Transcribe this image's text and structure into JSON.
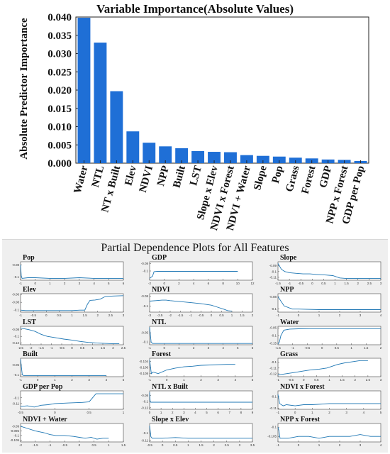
{
  "chart_data": [
    {
      "type": "bar",
      "title": "Variable Importance(Absolute Values)",
      "xlabel": "",
      "ylabel": "Absolute Predictor Importance",
      "ylim": [
        0,
        0.04
      ],
      "yticks": [
        "0.000",
        "0.005",
        "0.010",
        "0.015",
        "0.020",
        "0.025",
        "0.030",
        "0.035",
        "0.040"
      ],
      "grid": false,
      "bar_color": "#1f6fd6",
      "categories": [
        "Water",
        "NTL",
        "NT x Built",
        "Elev",
        "NDVI",
        "NPP",
        "Built",
        "LST",
        "Slope x Elev",
        "NDVI x Forest",
        "NDVI + Water",
        "Slope",
        "Pop",
        "Grass",
        "Forest",
        "GDP",
        "NPP x Forest",
        "GDP per Pop"
      ],
      "values": [
        0.0398,
        0.033,
        0.0197,
        0.0087,
        0.0056,
        0.0046,
        0.0041,
        0.0033,
        0.0031,
        0.003,
        0.0022,
        0.002,
        0.0018,
        0.0015,
        0.0013,
        0.001,
        0.0009,
        0.0006
      ]
    },
    {
      "type": "line",
      "title": "Partial Dependence Plots for All Features",
      "line_color": "#1f77b4",
      "panels": [
        {
          "name": "Pop",
          "xticks": [
            "-1",
            "0",
            "1",
            "2",
            "3",
            "4",
            "5",
            "6"
          ],
          "yticks": [
            "-0.08",
            "-0.1"
          ],
          "x": [
            -1,
            -0.95,
            -0.9,
            -0.5,
            0,
            1,
            2,
            3,
            4,
            5,
            6
          ],
          "y": [
            -0.08,
            -0.098,
            -0.102,
            -0.101,
            -0.101,
            -0.102,
            -0.102,
            -0.101,
            -0.102,
            -0.102,
            -0.102
          ],
          "ylim": [
            -0.105,
            -0.075
          ]
        },
        {
          "name": "GDP",
          "xticks": [
            "-2",
            "0",
            "2",
            "4",
            "6",
            "8",
            "10",
            "12"
          ],
          "yticks": [
            "-0.08",
            "-0.1"
          ],
          "x": [
            -2,
            -1.6,
            -1.4,
            -1,
            0,
            2,
            4,
            6,
            8,
            10
          ],
          "y": [
            -0.12,
            -0.114,
            -0.102,
            -0.101,
            -0.101,
            -0.101,
            -0.101,
            -0.101,
            -0.101,
            -0.101
          ],
          "ylim": [
            -0.125,
            -0.075
          ]
        },
        {
          "name": "Slope",
          "xticks": [
            "-1.5",
            "-1",
            "-0.5",
            "0",
            "0.5",
            "1",
            "1.5",
            "2",
            "2.5",
            "3"
          ],
          "yticks": [
            "-0.09",
            "-0.1",
            "-0.11"
          ],
          "x": [
            -1.5,
            -1.35,
            -1.2,
            -1,
            -0.7,
            -0.4,
            -0.1,
            0.2,
            0.6,
            0.9,
            1.2,
            1.5,
            2,
            2.5,
            3
          ],
          "y": [
            -0.086,
            -0.096,
            -0.1,
            -0.102,
            -0.103,
            -0.104,
            -0.104,
            -0.105,
            -0.106,
            -0.107,
            -0.111,
            -0.112,
            -0.112,
            -0.112,
            -0.112
          ],
          "ylim": [
            -0.115,
            -0.083
          ]
        },
        {
          "name": "Elev",
          "xticks": [
            "-1",
            "-0.5",
            "0",
            "0.5",
            "1",
            "1.5",
            "2",
            "2.5",
            "3"
          ],
          "yticks": [
            "-0.06",
            "-0.08",
            "-0.1"
          ],
          "x": [
            -1,
            -0.8,
            -0.5,
            0,
            0.5,
            1,
            1.3,
            1.5,
            1.6,
            1.7,
            1.9,
            2.1,
            2.3,
            2.6,
            3
          ],
          "y": [
            -0.1,
            -0.101,
            -0.101,
            -0.101,
            -0.101,
            -0.101,
            -0.1,
            -0.1,
            -0.085,
            -0.075,
            -0.074,
            -0.072,
            -0.065,
            -0.064,
            -0.063
          ],
          "ylim": [
            -0.105,
            -0.058
          ]
        },
        {
          "name": "NDVI",
          "xticks": [
            "-3",
            "-2.5",
            "-2",
            "-1.5",
            "-1",
            "-0.5",
            "0",
            "0.5",
            "1",
            "1.5",
            "2"
          ],
          "yticks": [
            "-0.08",
            "-0.1"
          ],
          "x": [
            -3,
            -2.7,
            -2.4,
            -2.2,
            -2,
            -1.5,
            -1,
            -0.5,
            0,
            0.3,
            0.6,
            0.8,
            1
          ],
          "y": [
            -0.09,
            -0.089,
            -0.088,
            -0.088,
            -0.089,
            -0.091,
            -0.093,
            -0.095,
            -0.098,
            -0.102,
            -0.106,
            -0.109,
            -0.11
          ],
          "ylim": [
            -0.112,
            -0.075
          ]
        },
        {
          "name": "NPP",
          "xticks": [
            "-1",
            "0",
            "1",
            "2",
            "3",
            "4"
          ],
          "yticks": [
            "-0.08",
            "-0.1"
          ],
          "x": [
            -1,
            -0.7,
            -0.3,
            0,
            1,
            2,
            3,
            4
          ],
          "y": [
            -0.08,
            -0.095,
            -0.1,
            -0.1,
            -0.101,
            -0.101,
            -0.101,
            -0.101
          ],
          "ylim": [
            -0.105,
            -0.075
          ]
        },
        {
          "name": "LST",
          "xticks": [
            "-2.5",
            "-2",
            "-1.5",
            "-1",
            "-0.5",
            "0",
            "0.5",
            "1",
            "1.5",
            "2",
            "2.5"
          ],
          "yticks": [
            "-0.08",
            "-0.1",
            "-0.12"
          ],
          "x": [
            -2.5,
            -2.1,
            -1.8,
            -1.5,
            -1.2,
            -0.8,
            -0.4,
            0,
            0.4,
            0.8,
            1.2,
            1.6,
            2,
            2.3
          ],
          "y": [
            -0.075,
            -0.08,
            -0.085,
            -0.094,
            -0.1,
            -0.104,
            -0.108,
            -0.111,
            -0.115,
            -0.118,
            -0.12,
            -0.121,
            -0.122,
            -0.122
          ],
          "ylim": [
            -0.125,
            -0.07
          ]
        },
        {
          "name": "NTL",
          "xticks": [
            "-1",
            "0",
            "1",
            "2",
            "3",
            "4",
            "5",
            "6"
          ],
          "yticks": [
            "-0.05",
            "-0.1"
          ],
          "x": [
            -1,
            -0.9,
            -0.8,
            0,
            1,
            2,
            3,
            4,
            5,
            6
          ],
          "y": [
            -0.02,
            -0.1,
            -0.108,
            -0.108,
            -0.108,
            -0.108,
            -0.108,
            -0.108,
            -0.108,
            -0.108
          ],
          "ylim": [
            -0.115,
            -0.015
          ]
        },
        {
          "name": "Water",
          "xticks": [
            "-1.5",
            "-1",
            "-0.5",
            "0",
            "0.5",
            "1",
            "1.5",
            "2"
          ],
          "yticks": [
            "-0.05",
            "-0.1",
            "-0.15"
          ],
          "x": [
            -1.5,
            -1.45,
            -1.4,
            -1.3,
            -1.1,
            -0.8,
            -0.4,
            0,
            0.5,
            1,
            1.5,
            2
          ],
          "y": [
            -0.155,
            -0.14,
            -0.1,
            -0.065,
            -0.058,
            -0.056,
            -0.055,
            -0.055,
            -0.055,
            -0.055,
            -0.055,
            -0.055
          ],
          "ylim": [
            -0.16,
            -0.04
          ]
        },
        {
          "name": "Built",
          "xticks": [
            "-1",
            "0",
            "1",
            "2",
            "3",
            "4",
            "5"
          ],
          "yticks": [
            "-0.05",
            "-0.1"
          ],
          "x": [
            -1,
            -0.9,
            -0.8,
            0,
            1,
            2,
            3,
            4
          ],
          "y": [
            -0.02,
            -0.1,
            -0.105,
            -0.105,
            -0.105,
            -0.105,
            -0.105,
            -0.105
          ],
          "ylim": [
            -0.11,
            -0.015
          ]
        },
        {
          "name": "Forest",
          "xticks": [
            "-1",
            "0",
            "1",
            "2",
            "3",
            "4",
            "5"
          ],
          "yticks": [
            "-0.104",
            "-0.106",
            "-0.108"
          ],
          "x": [
            -1,
            -0.9,
            -0.8,
            -0.5,
            0,
            0.5,
            1,
            1.5,
            2,
            2.5,
            3,
            3.5,
            4
          ],
          "y": [
            -0.1035,
            -0.108,
            -0.1075,
            -0.108,
            -0.1068,
            -0.1062,
            -0.1058,
            -0.1056,
            -0.1053,
            -0.1052,
            -0.1051,
            -0.105,
            -0.105
          ],
          "ylim": [
            -0.109,
            -0.103
          ]
        },
        {
          "name": "Grass",
          "xticks": [
            "-1",
            "-0.5",
            "0",
            "0.5",
            "1",
            "1.5",
            "2",
            "2.5",
            "3"
          ],
          "yticks": [
            "-0.1",
            "-0.11",
            "-0.12"
          ],
          "x": [
            -1,
            -0.7,
            -0.4,
            0,
            0.3,
            0.6,
            0.9,
            1.1,
            1.3,
            1.6,
            1.9,
            2.2,
            2.5
          ],
          "y": [
            -0.122,
            -0.12,
            -0.118,
            -0.115,
            -0.113,
            -0.112,
            -0.11,
            -0.107,
            -0.104,
            -0.101,
            -0.099,
            -0.097,
            -0.097
          ],
          "ylim": [
            -0.125,
            -0.093
          ]
        },
        {
          "name": "GDP per Pop",
          "xticks": [
            "-0.5",
            "0",
            "0.5",
            "1"
          ],
          "yticks": [
            "-0.1",
            "-0.11"
          ],
          "x": [
            -0.5,
            -0.4,
            -0.3,
            -0.2,
            -0.1,
            0,
            0.2,
            0.4,
            0.5,
            0.55,
            0.6,
            0.8,
            1
          ],
          "y": [
            -0.115,
            -0.114,
            -0.116,
            -0.113,
            -0.112,
            -0.11,
            -0.109,
            -0.108,
            -0.107,
            -0.1,
            -0.093,
            -0.093,
            -0.093
          ],
          "ylim": [
            -0.12,
            -0.088
          ]
        },
        {
          "name": "NTL x Built",
          "xticks": [
            "0",
            "1",
            "2",
            "3",
            "4",
            "5",
            "6",
            "7",
            "8",
            "9"
          ],
          "yticks": [
            "-0.08",
            "-0.1",
            "-0.12"
          ],
          "x": [
            0,
            0.05,
            0.1,
            1,
            2,
            3,
            4,
            5,
            6,
            7,
            8,
            9
          ],
          "y": [
            -0.07,
            -0.1,
            -0.102,
            -0.102,
            -0.102,
            -0.102,
            -0.102,
            -0.102,
            -0.102,
            -0.102,
            -0.102,
            -0.102
          ],
          "ylim": [
            -0.125,
            -0.065
          ]
        },
        {
          "name": "NDVI x Forest",
          "xticks": [
            "-1",
            "0",
            "1",
            "2",
            "3",
            "4",
            "5"
          ],
          "yticks": [
            "-0.1",
            "-0.11"
          ],
          "x": [
            -1,
            -0.9,
            -0.7,
            -0.5,
            0,
            0.5,
            1,
            2,
            3,
            4,
            5
          ],
          "y": [
            -0.098,
            -0.106,
            -0.108,
            -0.107,
            -0.108,
            -0.107,
            -0.107,
            -0.106,
            -0.106,
            -0.106,
            -0.106
          ],
          "ylim": [
            -0.111,
            -0.095
          ]
        },
        {
          "name": "NDVI + Water",
          "xticks": [
            "-2",
            "-1.5",
            "-1",
            "-0.5",
            "0",
            "0.5",
            "1",
            "1.5"
          ],
          "yticks": [
            "-0.09",
            "-0.095",
            "-0.1",
            "-0.105"
          ],
          "x": [
            -2,
            -1.8,
            -1.5,
            -1.2,
            -1,
            -0.8,
            -0.5,
            -0.2,
            0,
            0.2,
            0.4,
            0.6,
            0.8,
            1
          ],
          "y": [
            -0.09,
            -0.092,
            -0.095,
            -0.097,
            -0.099,
            -0.1,
            -0.1,
            -0.101,
            -0.102,
            -0.103,
            -0.102,
            -0.104,
            -0.103,
            -0.103
          ],
          "ylim": [
            -0.107,
            -0.087
          ]
        },
        {
          "name": "Slope x Elev",
          "xticks": [
            "-0.5",
            "0",
            "0.5",
            "1",
            "1.5",
            "2",
            "2.5",
            "3",
            "3.5"
          ],
          "yticks": [
            "-0.1",
            "-0.11"
          ],
          "x": [
            -0.5,
            -0.45,
            -0.4,
            0,
            0.5,
            1,
            1.5,
            2,
            2.5,
            3,
            3.5
          ],
          "y": [
            -0.09,
            -0.105,
            -0.107,
            -0.107,
            -0.106,
            -0.107,
            -0.107,
            -0.107,
            -0.107,
            -0.107,
            -0.107
          ],
          "ylim": [
            -0.112,
            -0.087
          ]
        },
        {
          "name": "NPP x Forest",
          "xticks": [
            "-1",
            "0",
            "1",
            "2",
            "3",
            "4"
          ],
          "yticks": [
            "-0.1",
            "-0.105"
          ],
          "x": [
            -1,
            -0.95,
            -0.9,
            -0.5,
            0,
            0.5,
            1,
            1.5,
            2,
            2.5,
            3,
            3.5,
            4
          ],
          "y": [
            -0.1,
            -0.102,
            -0.106,
            -0.106,
            -0.105,
            -0.105,
            -0.106,
            -0.105,
            -0.105,
            -0.105,
            -0.104,
            -0.105,
            -0.105
          ],
          "ylim": [
            -0.108,
            -0.098
          ]
        }
      ]
    }
  ]
}
